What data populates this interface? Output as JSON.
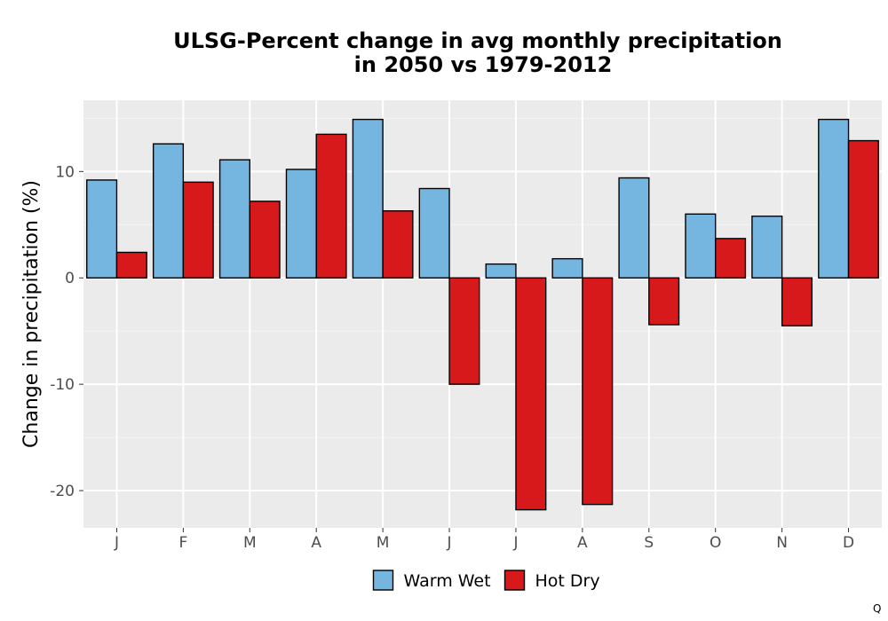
{
  "chart_data": {
    "type": "bar",
    "title_lines": [
      "ULSG-Percent change in avg monthly precipitation",
      "in 2050 vs 1979-2012"
    ],
    "xlabel": "",
    "ylabel": "Change in precipitation (%)",
    "categories": [
      "J",
      "F",
      "M",
      "A",
      "M",
      "J",
      "J",
      "A",
      "S",
      "O",
      "N",
      "D"
    ],
    "series": [
      {
        "name": "Warm Wet",
        "color": "#74b6e0",
        "values": [
          9.2,
          12.6,
          11.1,
          10.2,
          14.9,
          8.4,
          1.3,
          1.8,
          9.4,
          6.0,
          5.8,
          14.9
        ]
      },
      {
        "name": "Hot Dry",
        "color": "#d7191c",
        "values": [
          2.4,
          9.0,
          7.2,
          13.5,
          6.3,
          -10.0,
          -21.8,
          -21.3,
          -4.4,
          3.7,
          -4.5,
          12.9
        ]
      }
    ],
    "yticks": [
      -20,
      -10,
      0,
      10
    ],
    "ylim": [
      -23.5,
      16.7
    ],
    "grid": true,
    "legend_position": "bottom"
  },
  "corner_mark": "Q"
}
